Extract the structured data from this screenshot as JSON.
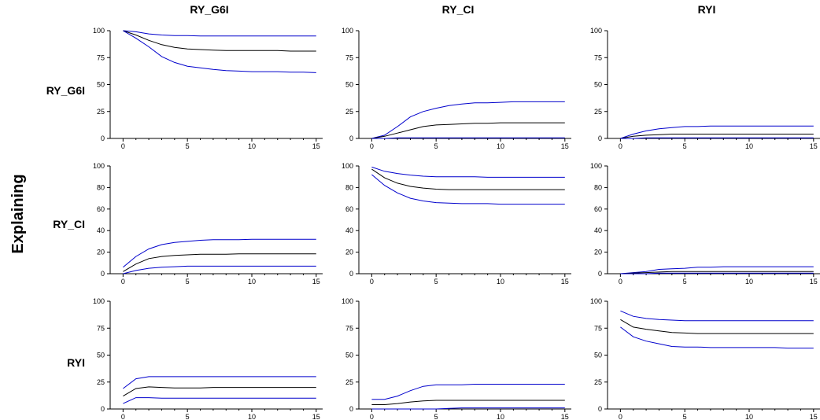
{
  "side_label": "Explaining",
  "columns": [
    "RY_G6I",
    "RY_CI",
    "RYI"
  ],
  "rows": [
    "RY_G6I",
    "RY_CI",
    "RYI"
  ],
  "colors": {
    "center": "#000000",
    "band": "#0000cc",
    "axis": "#000000"
  },
  "chart_data": [
    {
      "type": "line",
      "row": "RY_G6I",
      "column": "RY_G6I",
      "xlim": [
        -1,
        15.5
      ],
      "ylim": [
        0,
        100
      ],
      "xticks": [
        0,
        5,
        10,
        15
      ],
      "yticks": [
        0,
        25,
        50,
        75,
        100
      ],
      "x": [
        0,
        1,
        2,
        3,
        4,
        5,
        6,
        7,
        8,
        9,
        10,
        11,
        12,
        13,
        14,
        15
      ],
      "series": [
        {
          "role": "upper",
          "values": [
            100,
            99,
            97,
            96,
            95.5,
            95.5,
            95,
            95,
            95,
            95,
            95,
            95,
            95,
            95,
            95,
            95
          ]
        },
        {
          "role": "center",
          "values": [
            100,
            96,
            91,
            87,
            84.5,
            83,
            82.5,
            82,
            81.5,
            81.5,
            81.5,
            81.5,
            81.5,
            81,
            81,
            81
          ]
        },
        {
          "role": "lower",
          "values": [
            100,
            93,
            85,
            76,
            70.5,
            67,
            65.5,
            64,
            63,
            62.5,
            62,
            62,
            62,
            61.5,
            61.5,
            61
          ]
        }
      ]
    },
    {
      "type": "line",
      "row": "RY_G6I",
      "column": "RY_CI",
      "xlim": [
        -1,
        15.5
      ],
      "ylim": [
        0,
        100
      ],
      "xticks": [
        0,
        5,
        10,
        15
      ],
      "yticks": [
        0,
        25,
        50,
        75,
        100
      ],
      "x": [
        0,
        1,
        2,
        3,
        4,
        5,
        6,
        7,
        8,
        9,
        10,
        11,
        12,
        13,
        14,
        15
      ],
      "series": [
        {
          "role": "upper",
          "values": [
            0,
            3,
            11,
            20,
            25,
            28,
            30.5,
            32,
            33,
            33,
            33.5,
            34,
            34,
            34,
            34,
            34
          ]
        },
        {
          "role": "center",
          "values": [
            0,
            2,
            5,
            8,
            11,
            12.5,
            13,
            13.5,
            14,
            14,
            14.5,
            14.5,
            14.5,
            14.5,
            14.5,
            14.5
          ]
        },
        {
          "role": "lower",
          "values": [
            0,
            0,
            0.5,
            0.5,
            0.5,
            0.5,
            0.5,
            0.5,
            0.5,
            0.5,
            0.5,
            0.5,
            0.5,
            0.5,
            0.5,
            0.5
          ]
        }
      ]
    },
    {
      "type": "line",
      "row": "RY_G6I",
      "column": "RYI",
      "xlim": [
        -1,
        15.5
      ],
      "ylim": [
        0,
        100
      ],
      "xticks": [
        0,
        5,
        10,
        15
      ],
      "yticks": [
        0,
        25,
        50,
        75,
        100
      ],
      "x": [
        0,
        1,
        2,
        3,
        4,
        5,
        6,
        7,
        8,
        9,
        10,
        11,
        12,
        13,
        14,
        15
      ],
      "series": [
        {
          "role": "upper",
          "values": [
            0,
            4,
            7,
            9,
            10,
            11,
            11,
            11.5,
            11.5,
            11.5,
            11.5,
            11.5,
            11.5,
            11.5,
            11.5,
            11.5
          ]
        },
        {
          "role": "center",
          "values": [
            0,
            2,
            3,
            3.5,
            4,
            4,
            4,
            4,
            4,
            4,
            4,
            4,
            4,
            4,
            4,
            4
          ]
        },
        {
          "role": "lower",
          "values": [
            0,
            0,
            0.5,
            0.5,
            0.5,
            0.5,
            0.5,
            0.5,
            0.5,
            0.5,
            0.5,
            0.5,
            0.5,
            0.5,
            0.5,
            0.5
          ]
        }
      ]
    },
    {
      "type": "line",
      "row": "RY_CI",
      "column": "RY_G6I",
      "xlim": [
        -1,
        15.5
      ],
      "ylim": [
        0,
        100
      ],
      "xticks": [
        0,
        5,
        10,
        15
      ],
      "yticks": [
        0,
        20,
        40,
        60,
        80,
        100
      ],
      "x": [
        0,
        1,
        2,
        3,
        4,
        5,
        6,
        7,
        8,
        9,
        10,
        11,
        12,
        13,
        14,
        15
      ],
      "series": [
        {
          "role": "upper",
          "values": [
            6,
            16,
            23,
            27,
            29,
            30,
            31,
            31.5,
            31.5,
            31.5,
            32,
            32,
            32,
            32,
            32,
            32
          ]
        },
        {
          "role": "center",
          "values": [
            2,
            9,
            14,
            16,
            17,
            17.5,
            18,
            18,
            18,
            18.5,
            18.5,
            18.5,
            18.5,
            18.5,
            18.5,
            18.5
          ]
        },
        {
          "role": "lower",
          "values": [
            0,
            3,
            5,
            6,
            6.5,
            7,
            7,
            7,
            7,
            7,
            7,
            7,
            7,
            7,
            7,
            7
          ]
        }
      ]
    },
    {
      "type": "line",
      "row": "RY_CI",
      "column": "RY_CI",
      "xlim": [
        -1,
        15.5
      ],
      "ylim": [
        0,
        100
      ],
      "xticks": [
        0,
        5,
        10,
        15
      ],
      "yticks": [
        0,
        20,
        40,
        60,
        80,
        100
      ],
      "x": [
        0,
        1,
        2,
        3,
        4,
        5,
        6,
        7,
        8,
        9,
        10,
        11,
        12,
        13,
        14,
        15
      ],
      "series": [
        {
          "role": "upper",
          "values": [
            99,
            95,
            93,
            91.5,
            90.5,
            90,
            90,
            90,
            90,
            89.5,
            89.5,
            89.5,
            89.5,
            89.5,
            89.5,
            89.5
          ]
        },
        {
          "role": "center",
          "values": [
            97,
            89,
            84,
            81,
            79.5,
            78.5,
            78,
            78,
            78,
            78,
            78,
            78,
            78,
            78,
            78,
            78
          ]
        },
        {
          "role": "lower",
          "values": [
            92,
            82,
            75,
            70,
            67.5,
            66,
            65.5,
            65,
            65,
            65,
            64.5,
            64.5,
            64.5,
            64.5,
            64.5,
            64.5
          ]
        }
      ]
    },
    {
      "type": "line",
      "row": "RY_CI",
      "column": "RYI",
      "xlim": [
        -1,
        15.5
      ],
      "ylim": [
        0,
        100
      ],
      "xticks": [
        0,
        5,
        10,
        15
      ],
      "yticks": [
        0,
        20,
        40,
        60,
        80,
        100
      ],
      "x": [
        0,
        1,
        2,
        3,
        4,
        5,
        6,
        7,
        8,
        9,
        10,
        11,
        12,
        13,
        14,
        15
      ],
      "series": [
        {
          "role": "upper",
          "values": [
            0,
            1,
            2,
            4,
            4.5,
            5,
            6,
            6,
            6.5,
            6.5,
            6.5,
            6.5,
            6.5,
            6.5,
            6.5,
            6.5
          ]
        },
        {
          "role": "center",
          "values": [
            0,
            0.5,
            1,
            1.5,
            2,
            2,
            2,
            2,
            2,
            2,
            2,
            2,
            2,
            2,
            2,
            2
          ]
        },
        {
          "role": "lower",
          "values": [
            0,
            0,
            0,
            0.5,
            0.5,
            0.5,
            0.5,
            0.5,
            0.5,
            0.5,
            0.5,
            0.5,
            0.5,
            0.5,
            0.5,
            0.5
          ]
        }
      ]
    },
    {
      "type": "line",
      "row": "RYI",
      "column": "RY_G6I",
      "xlim": [
        -1,
        15.5
      ],
      "ylim": [
        0,
        100
      ],
      "xticks": [
        0,
        5,
        10,
        15
      ],
      "yticks": [
        0,
        25,
        50,
        75,
        100
      ],
      "x": [
        0,
        1,
        2,
        3,
        4,
        5,
        6,
        7,
        8,
        9,
        10,
        11,
        12,
        13,
        14,
        15
      ],
      "series": [
        {
          "role": "upper",
          "values": [
            19,
            28,
            30,
            30,
            30,
            30,
            30,
            30,
            30,
            30,
            30,
            30,
            30,
            30,
            30,
            30
          ]
        },
        {
          "role": "center",
          "values": [
            12,
            19,
            20.5,
            20,
            19.5,
            19.5,
            19.5,
            20,
            20,
            20,
            20,
            20,
            20,
            20,
            20,
            20
          ]
        },
        {
          "role": "lower",
          "values": [
            5,
            10.5,
            10.5,
            10,
            10,
            10,
            10,
            10,
            10,
            10,
            10,
            10,
            10,
            10,
            10,
            10
          ]
        }
      ]
    },
    {
      "type": "line",
      "row": "RYI",
      "column": "RY_CI",
      "xlim": [
        -1,
        15.5
      ],
      "ylim": [
        0,
        100
      ],
      "xticks": [
        0,
        5,
        10,
        15
      ],
      "yticks": [
        0,
        25,
        50,
        75,
        100
      ],
      "x": [
        0,
        1,
        2,
        3,
        4,
        5,
        6,
        7,
        8,
        9,
        10,
        11,
        12,
        13,
        14,
        15
      ],
      "series": [
        {
          "role": "upper",
          "values": [
            9,
            9,
            12,
            17,
            21,
            22.5,
            22.5,
            22.5,
            23,
            23,
            23,
            23,
            23,
            23,
            23,
            23
          ]
        },
        {
          "role": "center",
          "values": [
            4,
            4,
            5,
            6.5,
            7.5,
            8,
            8,
            8,
            8,
            8,
            8,
            8,
            8,
            8,
            8,
            8
          ]
        },
        {
          "role": "lower",
          "values": [
            0,
            0,
            0,
            0,
            0,
            0,
            0.5,
            1,
            1,
            1,
            1,
            1,
            1,
            1,
            1,
            1
          ]
        }
      ]
    },
    {
      "type": "line",
      "row": "RYI",
      "column": "RYI",
      "xlim": [
        -1,
        15.5
      ],
      "ylim": [
        0,
        100
      ],
      "xticks": [
        0,
        5,
        10,
        15
      ],
      "yticks": [
        0,
        25,
        50,
        75,
        100
      ],
      "x": [
        0,
        1,
        2,
        3,
        4,
        5,
        6,
        7,
        8,
        9,
        10,
        11,
        12,
        13,
        14,
        15
      ],
      "series": [
        {
          "role": "upper",
          "values": [
            91,
            86,
            84,
            83,
            82.5,
            82,
            82,
            82,
            82,
            82,
            82,
            82,
            82,
            82,
            82,
            82
          ]
        },
        {
          "role": "center",
          "values": [
            83,
            76,
            74,
            72.5,
            71,
            70.5,
            70,
            70,
            70,
            70,
            70,
            70,
            70,
            70,
            70,
            70
          ]
        },
        {
          "role": "lower",
          "values": [
            76,
            67,
            63,
            60.5,
            58,
            57.5,
            57.5,
            57,
            57,
            57,
            57,
            57,
            57,
            56.5,
            56.5,
            56.5
          ]
        }
      ]
    }
  ]
}
